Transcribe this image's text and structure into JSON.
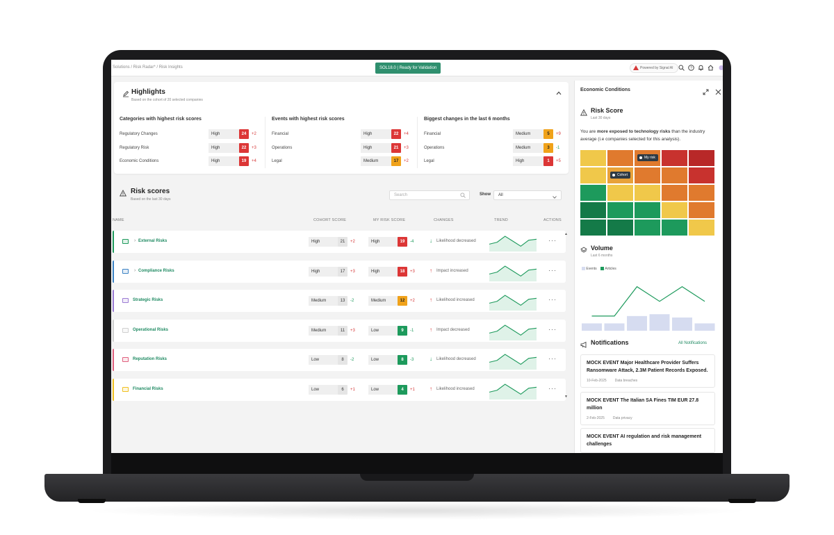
{
  "topbar": {
    "breadcrumb": "Solutions / Risk Radar* / Risk Insights",
    "status": "SOL18.0 | Ready for Validation",
    "powered_by": "Powered by Signal AI"
  },
  "highlights": {
    "title": "Highlights",
    "subtitle": "Based on the cohort of 20 selected companies",
    "columns": [
      {
        "title": "Categories with highest risk scores",
        "rows": [
          {
            "label": "Regulatory Changes",
            "level": "High",
            "score": "24",
            "delta": "+2",
            "color": "#dc3636",
            "dir": "up"
          },
          {
            "label": "Regulatory Risk",
            "level": "High",
            "score": "22",
            "delta": "+3",
            "color": "#dc3636",
            "dir": "up"
          },
          {
            "label": "Economic Conditions",
            "level": "High",
            "score": "19",
            "delta": "+4",
            "color": "#dc3636",
            "dir": "up"
          }
        ]
      },
      {
        "title": "Events with highest risk scores",
        "rows": [
          {
            "label": "Financial",
            "level": "High",
            "score": "22",
            "delta": "+4",
            "color": "#dc3636",
            "dir": "up"
          },
          {
            "label": "Operations",
            "level": "High",
            "score": "21",
            "delta": "+3",
            "color": "#dc3636",
            "dir": "up"
          },
          {
            "label": "Legal",
            "level": "Medium",
            "score": "17",
            "delta": "+2",
            "color": "#f0a21a",
            "dir": "up"
          }
        ]
      },
      {
        "title": "Biggest changes in the last 6 months",
        "rows": [
          {
            "label": "Financial",
            "level": "Medium",
            "score": "5",
            "delta": "+9",
            "color": "#f0a21a",
            "dir": "up"
          },
          {
            "label": "Operations",
            "level": "Medium",
            "score": "3",
            "delta": "-1",
            "color": "#f0a21a",
            "dir": "down"
          },
          {
            "label": "Legal",
            "level": "High",
            "score": "1",
            "delta": "+5",
            "color": "#dc3636",
            "dir": "up"
          }
        ]
      }
    ]
  },
  "risk_scores": {
    "title": "Risk scores",
    "subtitle": "Based on the last 30 days",
    "search_placeholder": "Search",
    "show_label": "Show",
    "show_value": "All",
    "headers": {
      "name": "NAME",
      "cohort": "COHORT SCORE",
      "my": "MY RISK SCORE",
      "changes": "CHANGES",
      "trend": "TREND",
      "actions": "ACTIONS"
    },
    "rows": [
      {
        "name": "External Risks",
        "accent": "#1d9a5c",
        "expandable": true,
        "cohort_level": "High",
        "cohort_score": "21",
        "cohort_delta": "+2",
        "cohort_dir": "up",
        "my_level": "High",
        "my_score": "19",
        "my_color": "#dc3636",
        "my_delta": "-4",
        "my_dir": "down",
        "change": "Likelihood decreased",
        "change_dir": "down",
        "trend": [
          6,
          8,
          14,
          9,
          4,
          10,
          11
        ]
      },
      {
        "name": "Compliance Risks",
        "accent": "#3b82c4",
        "expandable": true,
        "cohort_level": "High",
        "cohort_score": "17",
        "cohort_delta": "+3",
        "cohort_dir": "up",
        "my_level": "High",
        "my_score": "18",
        "my_color": "#dc3636",
        "my_delta": "+3",
        "my_dir": "up",
        "change": "Impact increased",
        "change_dir": "up",
        "trend": [
          6,
          8,
          14,
          9,
          4,
          10,
          11
        ]
      },
      {
        "name": "Strategic Risks",
        "accent": "#9b7bd4",
        "expandable": false,
        "cohort_level": "Medium",
        "cohort_score": "13",
        "cohort_delta": "-2",
        "cohort_dir": "down",
        "my_level": "Medium",
        "my_score": "12",
        "my_color": "#f0a21a",
        "my_delta": "+2",
        "my_dir": "up",
        "change": "Likelihood increased",
        "change_dir": "up",
        "trend": [
          6,
          8,
          14,
          9,
          4,
          10,
          11
        ]
      },
      {
        "name": "Operational Risks",
        "accent": "#cfcfcf",
        "expandable": false,
        "cohort_level": "Medium",
        "cohort_score": "11",
        "cohort_delta": "+3",
        "cohort_dir": "up",
        "my_level": "Low",
        "my_score": "9",
        "my_color": "#1d9a5c",
        "my_delta": "-1",
        "my_dir": "down",
        "change": "Impact decreased",
        "change_dir": "up",
        "trend": [
          6,
          8,
          14,
          9,
          4,
          10,
          11
        ]
      },
      {
        "name": "Reputation Risks",
        "accent": "#e0607e",
        "expandable": false,
        "cohort_level": "Low",
        "cohort_score": "8",
        "cohort_delta": "-2",
        "cohort_dir": "down",
        "my_level": "Low",
        "my_score": "8",
        "my_color": "#1d9a5c",
        "my_delta": "-3",
        "my_dir": "down",
        "change": "Likelihood decreased",
        "change_dir": "down",
        "trend": [
          6,
          8,
          14,
          9,
          4,
          10,
          11
        ]
      },
      {
        "name": "Financial Risks",
        "accent": "#f0c020",
        "expandable": false,
        "cohort_level": "Low",
        "cohort_score": "6",
        "cohort_delta": "+1",
        "cohort_dir": "up",
        "my_level": "Low",
        "my_score": "4",
        "my_color": "#1d9a5c",
        "my_delta": "+1",
        "my_dir": "up",
        "change": "Likelihood increased",
        "change_dir": "up",
        "trend": [
          6,
          8,
          14,
          9,
          4,
          10,
          11
        ]
      }
    ]
  },
  "side": {
    "title": "Economic Conditions",
    "risk_title": "Risk Score",
    "risk_sub": "Last 30 days",
    "risk_text_pre": "You are ",
    "risk_text_bold": "more exposed to technology risks",
    "risk_text_post": " than the industry average (i.e companies selected for this analysis).",
    "my_risk_tag": "My risk",
    "cohort_tag": "Cohort",
    "heatmap": [
      [
        "#f0c84a",
        "#e07a2e",
        "#e07a2e",
        "#c8322e",
        "#b82828"
      ],
      [
        "#f0c84a",
        "#e8a23a",
        "#e07a2e",
        "#e07a2e",
        "#c8322e"
      ],
      [
        "#1d9a5c",
        "#f0c84a",
        "#f0c84a",
        "#e07a2e",
        "#e07a2e"
      ],
      [
        "#147a48",
        "#1d9a5c",
        "#1d9a5c",
        "#f0c84a",
        "#e07a2e"
      ],
      [
        "#147a48",
        "#147a48",
        "#1d9a5c",
        "#1d9a5c",
        "#f0c84a"
      ]
    ],
    "volume_title": "Volume",
    "volume_sub": "Last 6 months",
    "legend_events": "Events",
    "legend_articles": "Articles",
    "volume_chart": {
      "type": "bar",
      "events": [
        2,
        2,
        4,
        4.5,
        3.6,
        2
      ],
      "articles": [
        4,
        4,
        12,
        8,
        12,
        8
      ]
    },
    "notifications_title": "Notifications",
    "all_notifications": "All Notifications",
    "notifications": [
      {
        "title": "MOCK EVENT Major Healthcare Provider Suffers Ransomware Attack, 2.3M Patient Records Exposed.",
        "date": "10-Feb-2025",
        "tag": "Data breaches"
      },
      {
        "title": "MOCK EVENT The Italian SA Fines TIM EUR 27.8 million",
        "date": "2-Feb-2025",
        "tag": "Data privacy"
      },
      {
        "title": "MOCK EVENT AI regulation and risk management challenges",
        "date": "",
        "tag": ""
      }
    ]
  }
}
